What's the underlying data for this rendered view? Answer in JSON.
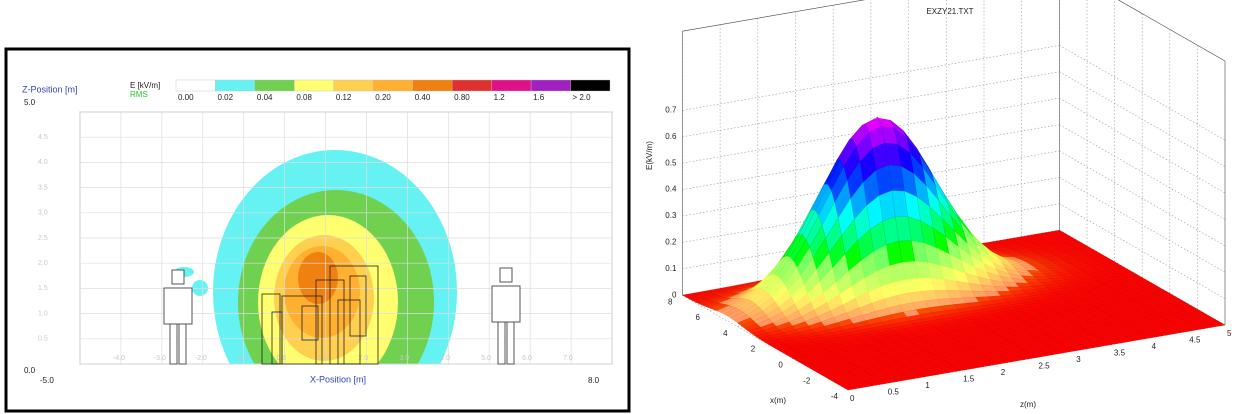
{
  "chart_data": [
    {
      "type": "contour",
      "ylabel": "Z-Position [m]",
      "xlabel": "X-Position [m]",
      "legend_title": "E [kV/m]",
      "legend_subtitle": "RMS",
      "xlim": [
        -5,
        8
      ],
      "xticks": [
        {
          "value": -5,
          "label": "-5.0"
        },
        {
          "value": -4,
          "label": "-4.0"
        },
        {
          "value": -3,
          "label": "-3.0"
        },
        {
          "value": -2,
          "label": "-2.0"
        },
        {
          "value": -1,
          "label": "-1.0"
        },
        {
          "value": 0,
          "label": "0.0"
        },
        {
          "value": 1,
          "label": "1.0"
        },
        {
          "value": 2,
          "label": "2.0"
        },
        {
          "value": 3,
          "label": "3.0"
        },
        {
          "value": 4,
          "label": "4.0"
        },
        {
          "value": 5,
          "label": "5.0"
        },
        {
          "value": 6,
          "label": "6.0"
        },
        {
          "value": 7,
          "label": "7.0"
        },
        {
          "value": 8,
          "label": "8.0"
        }
      ],
      "ylim": [
        0,
        5
      ],
      "yticks": [
        {
          "value": 0,
          "label": "0.0"
        },
        0.5,
        {
          "value": 1,
          "label": "1.0"
        },
        1.5,
        {
          "value": 2,
          "label": "2.0"
        },
        2.5,
        {
          "value": 3,
          "label": "3.0"
        },
        3.5,
        {
          "value": 4,
          "label": "4.0"
        },
        4.5,
        {
          "value": 5,
          "label": "5.0"
        }
      ],
      "levels": [
        {
          "value": 0,
          "label": "0.00"
        },
        {
          "value": 0.02,
          "label": "0.02"
        },
        {
          "value": 0.04,
          "label": "0.04"
        },
        {
          "value": 0.08,
          "label": "0.08"
        },
        {
          "value": 0.12,
          "label": "0.12"
        },
        {
          "value": 0.2,
          "label": "0.20"
        },
        {
          "value": 0.4,
          "label": "0.40"
        },
        {
          "value": 0.8,
          "label": "0.80"
        },
        {
          "value": 1.2,
          "label": "1.2"
        },
        {
          "value": 1.6,
          "label": "1.6"
        },
        {
          "value": 2,
          "label": "> 2.0"
        }
      ],
      "colors": [
        "#ffffff",
        "#66f2f2",
        "#70d050",
        "#ffff70",
        "#ffd050",
        "#ffb030",
        "#f08010",
        "#e03030",
        "#e0108a",
        "#a020c0",
        "#000000"
      ],
      "grid": true
    },
    {
      "type": "surface",
      "title": "EXZY21.TXT",
      "xlabel": "x(m)",
      "ylabel": "z(m)",
      "zlabel": "E(kV/m)",
      "xlim": [
        -4,
        8
      ],
      "xticks": [
        -4,
        -2,
        0,
        2,
        4,
        6,
        8
      ],
      "ylim": [
        0,
        5
      ],
      "yticks": [
        0,
        0.5,
        1,
        1.5,
        2,
        2.5,
        3,
        3.5,
        4,
        4.5,
        5
      ],
      "zlim": [
        0,
        1
      ],
      "zticks": [
        0,
        0.1,
        0.2,
        0.3,
        0.4,
        0.5,
        0.6,
        0.7
      ],
      "peak_value": 0.67,
      "grid": true
    }
  ]
}
